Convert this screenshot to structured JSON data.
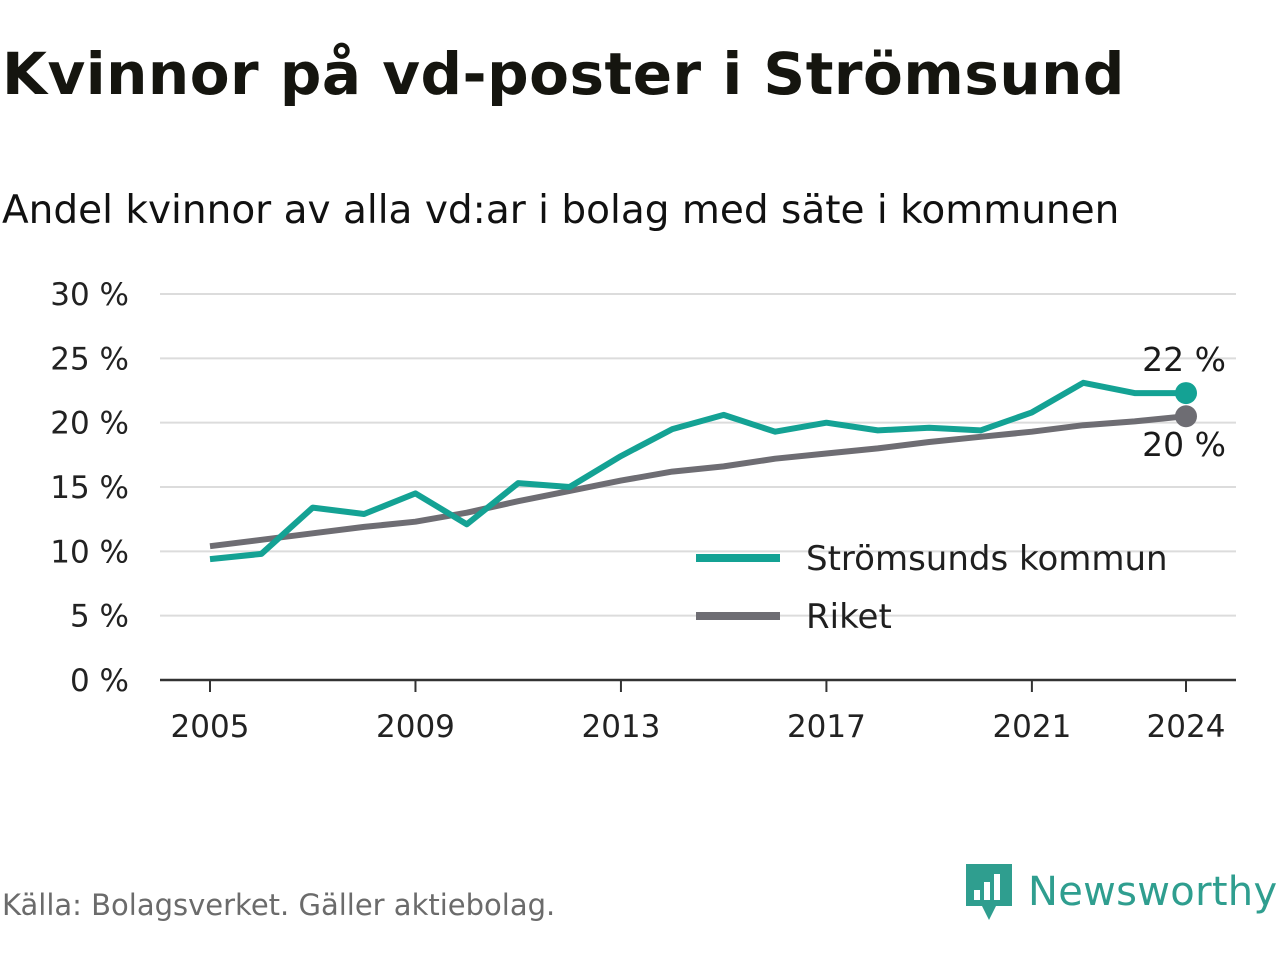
{
  "header": {
    "title": "Kvinnor på vd-poster i Strömsund",
    "subtitle": "Andel kvinnor av alla vd:ar i bolag med säte i kommunen"
  },
  "footer": {
    "source": "Källa: Bolagsverket. Gäller aktiebolag.",
    "brand": "Newsworthy"
  },
  "colors": {
    "kommun": "#14a294",
    "riket": "#6e6d73",
    "grid": "#dcdcdc",
    "axis": "#333333",
    "brand": "#2f9e8f"
  },
  "chart_data": {
    "type": "line",
    "title": "Kvinnor på vd-poster i Strömsund",
    "subtitle": "Andel kvinnor av alla vd:ar i bolag med säte i kommunen",
    "xlabel": "",
    "ylabel": "",
    "x": [
      2005,
      2006,
      2007,
      2008,
      2009,
      2010,
      2011,
      2012,
      2013,
      2014,
      2015,
      2016,
      2017,
      2018,
      2019,
      2020,
      2021,
      2022,
      2023,
      2024
    ],
    "xlim": [
      2004,
      2025
    ],
    "ylim": [
      0,
      30
    ],
    "yticks": [
      0,
      5,
      10,
      15,
      20,
      25,
      30
    ],
    "ytick_labels": [
      "0 %",
      "5 %",
      "10 %",
      "15 %",
      "20 %",
      "25 %",
      "30 %"
    ],
    "xticks": [
      2005,
      2009,
      2013,
      2017,
      2021,
      2024
    ],
    "xtick_labels": [
      "2005",
      "2009",
      "2013",
      "2017",
      "2021",
      "2024"
    ],
    "grid": true,
    "legend_position": "bottom-right",
    "series": [
      {
        "name": "Strömsunds kommun",
        "color_key": "kommun",
        "values": [
          9.4,
          9.8,
          13.4,
          12.9,
          14.5,
          12.1,
          15.3,
          15.0,
          17.4,
          19.5,
          20.6,
          19.3,
          20.0,
          19.4,
          19.6,
          19.4,
          20.8,
          23.1,
          22.3,
          22.3
        ],
        "end_label": "22 %"
      },
      {
        "name": "Riket",
        "color_key": "riket",
        "values": [
          10.4,
          10.9,
          11.4,
          11.9,
          12.3,
          13.0,
          13.9,
          14.7,
          15.5,
          16.2,
          16.6,
          17.2,
          17.6,
          18.0,
          18.5,
          18.9,
          19.3,
          19.8,
          20.1,
          20.5
        ],
        "end_label": "20 %"
      }
    ]
  }
}
